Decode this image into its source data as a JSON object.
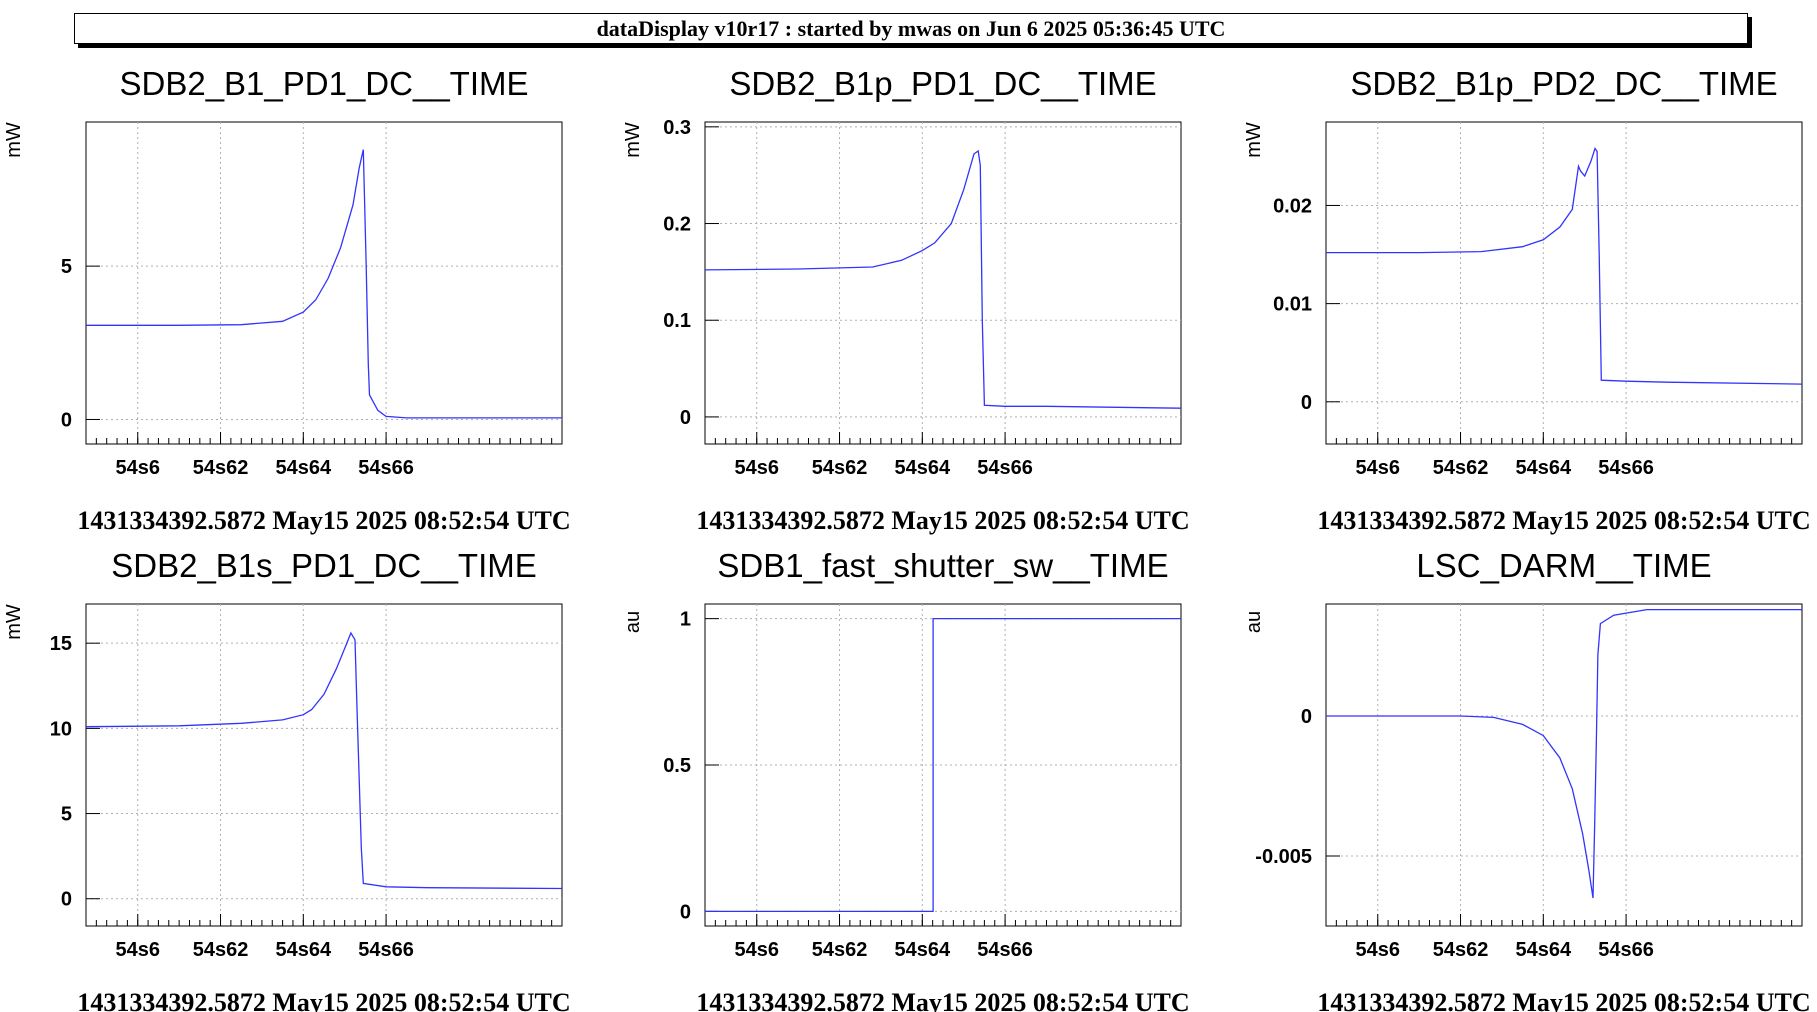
{
  "header": {
    "title": "dataDisplay v10r17 : started by mwas on Jun  6 2025 05:36:45 UTC"
  },
  "colors": {
    "trace": "#3333ff",
    "grid": "#b0b0b0",
    "axis": "#000000"
  },
  "chart_data": [
    {
      "type": "line",
      "title": "SDB2_B1_PD1_DC__TIME",
      "ylabel": "mW",
      "xlabel": "",
      "footer": "1431334392.5872 May15 2025 08:52:54 UTC",
      "xlim": [
        54.5475,
        54.6625
      ],
      "ylim": [
        -0.8,
        9.7
      ],
      "xticks": [
        {
          "v": 54.56,
          "label": "54s6"
        },
        {
          "v": 54.58,
          "label": "54s62"
        },
        {
          "v": 54.6,
          "label": "54s64"
        },
        {
          "v": 54.62,
          "label": "54s66"
        }
      ],
      "yticks": [
        {
          "v": 0,
          "label": "0"
        },
        {
          "v": 5,
          "label": "5"
        }
      ],
      "grid": true,
      "series": [
        {
          "values": [
            [
              54.5475,
              3.07
            ],
            [
              54.57,
              3.07
            ],
            [
              54.585,
              3.09
            ],
            [
              54.595,
              3.2
            ],
            [
              54.6,
              3.5
            ],
            [
              54.603,
              3.9
            ],
            [
              54.606,
              4.6
            ],
            [
              54.609,
              5.6
            ],
            [
              54.612,
              7.0
            ],
            [
              54.6135,
              8.2
            ],
            [
              54.6145,
              8.8
            ],
            [
              54.6152,
              5.0
            ],
            [
              54.6157,
              1.8
            ],
            [
              54.616,
              0.8
            ],
            [
              54.618,
              0.3
            ],
            [
              54.62,
              0.1
            ],
            [
              54.625,
              0.05
            ],
            [
              54.6625,
              0.05
            ]
          ]
        }
      ]
    },
    {
      "type": "line",
      "title": "SDB2_B1p_PD1_DC__TIME",
      "ylabel": "mW",
      "xlabel": "",
      "footer": "1431334392.5872 May15 2025 08:52:54 UTC",
      "xlim": [
        54.5475,
        54.6625
      ],
      "ylim": [
        -0.028,
        0.305
      ],
      "xticks": [
        {
          "v": 54.56,
          "label": "54s6"
        },
        {
          "v": 54.58,
          "label": "54s62"
        },
        {
          "v": 54.6,
          "label": "54s64"
        },
        {
          "v": 54.62,
          "label": "54s66"
        }
      ],
      "yticks": [
        {
          "v": 0,
          "label": "0"
        },
        {
          "v": 0.1,
          "label": "0.1"
        },
        {
          "v": 0.2,
          "label": "0.2"
        },
        {
          "v": 0.3,
          "label": "0.3"
        }
      ],
      "grid": true,
      "series": [
        {
          "values": [
            [
              54.5475,
              0.152
            ],
            [
              54.57,
              0.153
            ],
            [
              54.588,
              0.155
            ],
            [
              54.595,
              0.162
            ],
            [
              54.6,
              0.172
            ],
            [
              54.603,
              0.18
            ],
            [
              54.607,
              0.2
            ],
            [
              54.61,
              0.235
            ],
            [
              54.6125,
              0.272
            ],
            [
              54.6135,
              0.275
            ],
            [
              54.614,
              0.26
            ],
            [
              54.6145,
              0.1
            ],
            [
              54.615,
              0.012
            ],
            [
              54.62,
              0.011
            ],
            [
              54.63,
              0.011
            ],
            [
              54.6625,
              0.009
            ]
          ]
        }
      ]
    },
    {
      "type": "line",
      "title": "SDB2_B1p_PD2_DC__TIME",
      "ylabel": "mW",
      "xlabel": "",
      "footer": "1431334392.5872 May15 2025 08:52:54 UTC",
      "xlim": [
        54.5475,
        54.6625
      ],
      "ylim": [
        -0.0043,
        0.0285
      ],
      "xticks": [
        {
          "v": 54.56,
          "label": "54s6"
        },
        {
          "v": 54.58,
          "label": "54s62"
        },
        {
          "v": 54.6,
          "label": "54s64"
        },
        {
          "v": 54.62,
          "label": "54s66"
        }
      ],
      "yticks": [
        {
          "v": 0,
          "label": "0"
        },
        {
          "v": 0.01,
          "label": "0.01"
        },
        {
          "v": 0.02,
          "label": "0.02"
        }
      ],
      "grid": true,
      "series": [
        {
          "values": [
            [
              54.5475,
              0.0152
            ],
            [
              54.57,
              0.0152
            ],
            [
              54.585,
              0.0153
            ],
            [
              54.595,
              0.0158
            ],
            [
              54.6,
              0.0165
            ],
            [
              54.604,
              0.0178
            ],
            [
              54.607,
              0.0196
            ],
            [
              54.6085,
              0.024
            ],
            [
              54.609,
              0.0235
            ],
            [
              54.61,
              0.023
            ],
            [
              54.6115,
              0.0245
            ],
            [
              54.6125,
              0.0258
            ],
            [
              54.613,
              0.0255
            ],
            [
              54.6135,
              0.015
            ],
            [
              54.614,
              0.0022
            ],
            [
              54.62,
              0.0021
            ],
            [
              54.63,
              0.002
            ],
            [
              54.6625,
              0.0018
            ]
          ]
        }
      ]
    },
    {
      "type": "line",
      "title": "SDB2_B1s_PD1_DC__TIME",
      "ylabel": "mW",
      "xlabel": "",
      "footer": "1431334392.5872 May15 2025 08:52:54 UTC",
      "xlim": [
        54.5475,
        54.6625
      ],
      "ylim": [
        -1.6,
        17.3
      ],
      "xticks": [
        {
          "v": 54.56,
          "label": "54s6"
        },
        {
          "v": 54.58,
          "label": "54s62"
        },
        {
          "v": 54.6,
          "label": "54s64"
        },
        {
          "v": 54.62,
          "label": "54s66"
        }
      ],
      "yticks": [
        {
          "v": 0,
          "label": "0"
        },
        {
          "v": 5,
          "label": "5"
        },
        {
          "v": 10,
          "label": "10"
        },
        {
          "v": 15,
          "label": "15"
        }
      ],
      "grid": true,
      "series": [
        {
          "values": [
            [
              54.5475,
              10.1
            ],
            [
              54.57,
              10.15
            ],
            [
              54.585,
              10.3
            ],
            [
              54.595,
              10.5
            ],
            [
              54.6,
              10.8
            ],
            [
              54.602,
              11.1
            ],
            [
              54.605,
              12.0
            ],
            [
              54.608,
              13.5
            ],
            [
              54.6105,
              15.0
            ],
            [
              54.6115,
              15.6
            ],
            [
              54.6125,
              15.2
            ],
            [
              54.613,
              11.0
            ],
            [
              54.614,
              3.0
            ],
            [
              54.6145,
              0.9
            ],
            [
              54.62,
              0.7
            ],
            [
              54.63,
              0.65
            ],
            [
              54.6625,
              0.6
            ]
          ]
        }
      ]
    },
    {
      "type": "line",
      "title": "SDB1_fast_shutter_sw__TIME",
      "ylabel": "au",
      "xlabel": "",
      "footer": "1431334392.5872 May15 2025 08:52:54 UTC",
      "xlim": [
        54.5475,
        54.6625
      ],
      "ylim": [
        -0.05,
        1.05
      ],
      "xticks": [
        {
          "v": 54.56,
          "label": "54s6"
        },
        {
          "v": 54.58,
          "label": "54s62"
        },
        {
          "v": 54.6,
          "label": "54s64"
        },
        {
          "v": 54.62,
          "label": "54s66"
        }
      ],
      "yticks": [
        {
          "v": 0,
          "label": "0"
        },
        {
          "v": 0.5,
          "label": "0.5"
        },
        {
          "v": 1,
          "label": "1"
        }
      ],
      "grid": true,
      "series": [
        {
          "values": [
            [
              54.5475,
              0
            ],
            [
              54.6026,
              0
            ],
            [
              54.6026,
              1
            ],
            [
              54.6625,
              1
            ]
          ]
        }
      ]
    },
    {
      "type": "line",
      "title": "LSC_DARM__TIME",
      "ylabel": "au",
      "xlabel": "",
      "footer": "1431334392.5872 May15 2025 08:52:54 UTC",
      "xlim": [
        54.5475,
        54.6625
      ],
      "ylim": [
        -0.0075,
        0.004
      ],
      "xticks": [
        {
          "v": 54.56,
          "label": "54s6"
        },
        {
          "v": 54.58,
          "label": "54s62"
        },
        {
          "v": 54.6,
          "label": "54s64"
        },
        {
          "v": 54.62,
          "label": "54s66"
        }
      ],
      "yticks": [
        {
          "v": -0.005,
          "label": "-0.005"
        },
        {
          "v": 0,
          "label": "0"
        }
      ],
      "grid": true,
      "series": [
        {
          "values": [
            [
              54.5475,
              0
            ],
            [
              54.58,
              0
            ],
            [
              54.588,
              -5e-05
            ],
            [
              54.595,
              -0.0003
            ],
            [
              54.6,
              -0.0007
            ],
            [
              54.604,
              -0.0015
            ],
            [
              54.607,
              -0.0026
            ],
            [
              54.6095,
              -0.0042
            ],
            [
              54.611,
              -0.0055
            ],
            [
              54.612,
              -0.0065
            ],
            [
              54.6124,
              -0.004
            ],
            [
              54.6128,
              -0.001
            ],
            [
              54.6132,
              0.0022
            ],
            [
              54.6138,
              0.0033
            ],
            [
              54.617,
              0.0036
            ],
            [
              54.625,
              0.0038
            ],
            [
              54.6625,
              0.0038
            ]
          ]
        }
      ]
    }
  ]
}
